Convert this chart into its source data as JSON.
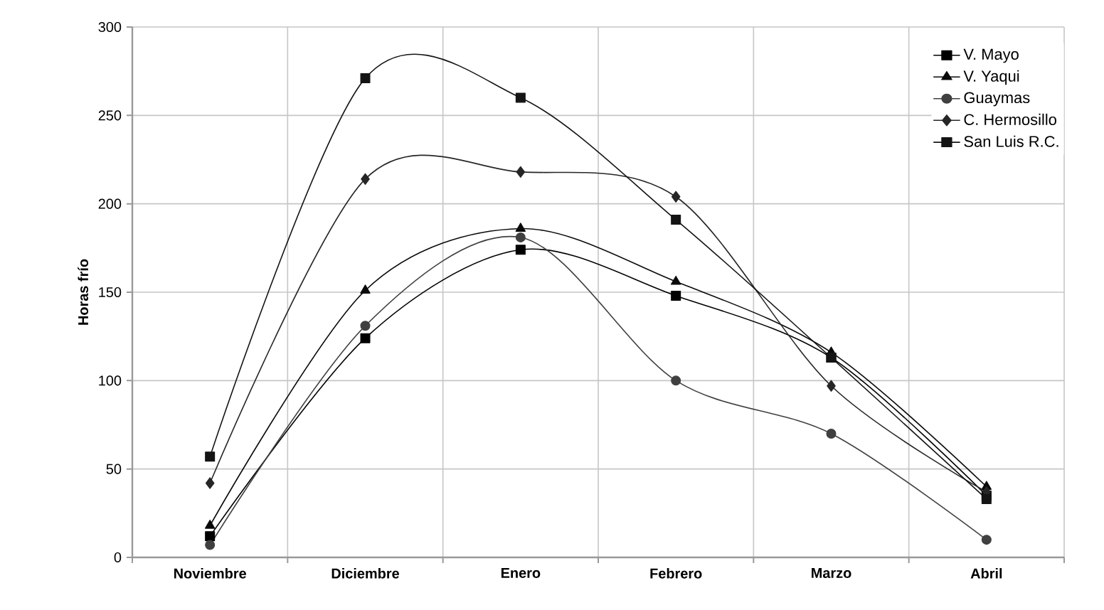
{
  "chart_data": {
    "type": "line",
    "ylabel": "Horas frío",
    "categories": [
      "Noviembre",
      "Diciembre",
      "Enero",
      "Febrero",
      "Marzo",
      "Abril"
    ],
    "ylim": [
      0,
      300
    ],
    "yticks": [
      0,
      50,
      100,
      150,
      200,
      250,
      300
    ],
    "grid": true,
    "legend": "top right",
    "series": [
      {
        "name": "V. Mayo",
        "color": "#000000",
        "marker": "square",
        "values": [
          12,
          124,
          174,
          148,
          113,
          35
        ]
      },
      {
        "name": "V. Yaqui",
        "color": "#0a0a0a",
        "marker": "triangle",
        "values": [
          18,
          151,
          186,
          156,
          116,
          40
        ]
      },
      {
        "name": "Guaymas",
        "color": "#404040",
        "marker": "circle",
        "values": [
          7,
          131,
          181,
          100,
          70,
          10
        ]
      },
      {
        "name": "C. Hermosillo",
        "color": "#262626",
        "marker": "diamond",
        "values": [
          42,
          214,
          218,
          204,
          97,
          37
        ]
      },
      {
        "name": "San Luis R.C.",
        "color": "#141414",
        "marker": "square",
        "values": [
          57,
          271,
          260,
          191,
          113,
          33
        ]
      }
    ]
  }
}
